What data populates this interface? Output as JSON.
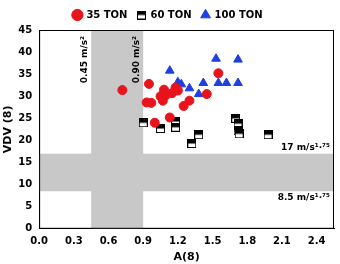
{
  "chart_data": {
    "type": "scatter",
    "x_label": "A(8)",
    "y_label": "VDV (8)",
    "xlim": [
      0,
      2.55
    ],
    "xticks": [
      {
        "value": 0,
        "label": "0.0"
      },
      {
        "value": 0.3,
        "label": "0.3"
      },
      {
        "value": 0.6,
        "label": "0.6"
      },
      {
        "value": 0.9,
        "label": "0.9"
      },
      {
        "value": 1.2,
        "label": "1.2"
      },
      {
        "value": 1.5,
        "label": "1.5"
      },
      {
        "value": 1.8,
        "label": "1.8"
      },
      {
        "value": 2.1,
        "label": "2.1"
      },
      {
        "value": 2.4,
        "label": "2.4"
      }
    ],
    "ylim": [
      0,
      45
    ],
    "yticks": [
      0,
      5,
      10,
      15,
      20,
      25,
      30,
      35,
      40,
      45
    ],
    "grid": false,
    "legend": "top",
    "bands": [
      {
        "axis": "x",
        "from": 0.45,
        "to": 0.9,
        "labels": [
          "0.45 m/s²",
          "0.90 m/s²"
        ],
        "color": "#c8c8c8"
      },
      {
        "axis": "y",
        "from": 8.5,
        "to": 17,
        "labels": [
          "8.5 m/s¹·⁷⁵",
          "17 m/s¹·⁷⁵"
        ],
        "color": "#c8c8c8"
      }
    ],
    "series": [
      {
        "name": "35 TON",
        "color": "#e8141b",
        "marker": "circle",
        "x": [
          0.72,
          0.93,
          0.95,
          0.97,
          1.0,
          1.05,
          1.07,
          1.08,
          1.1,
          1.13,
          1.15,
          1.18,
          1.2,
          1.25,
          1.3,
          1.45,
          1.55
        ],
        "values": [
          31.4,
          28.6,
          32.8,
          28.5,
          24.0,
          30.0,
          29.0,
          31.5,
          30.3,
          25.2,
          30.7,
          32.0,
          31.3,
          27.8,
          29.0,
          30.5,
          35.2
        ]
      },
      {
        "name": "60 TON",
        "color": "#000000",
        "marker": "half_square",
        "x": [
          0.9,
          1.05,
          1.18,
          1.18,
          1.32,
          1.38,
          1.7,
          1.72,
          1.72,
          1.73,
          1.98
        ],
        "values": [
          24.0,
          22.7,
          24.3,
          23.0,
          19.3,
          21.3,
          25.0,
          23.8,
          22.2,
          21.5,
          21.3
        ]
      },
      {
        "name": "100 TON",
        "color": "#1f3fe0",
        "marker": "triangle",
        "x": [
          1.13,
          1.2,
          1.23,
          1.3,
          1.38,
          1.42,
          1.53,
          1.55,
          1.62,
          1.72,
          1.72
        ],
        "values": [
          35.8,
          33.2,
          32.7,
          31.8,
          30.5,
          33.0,
          38.5,
          33.0,
          33.0,
          38.3,
          33.0
        ]
      }
    ]
  }
}
